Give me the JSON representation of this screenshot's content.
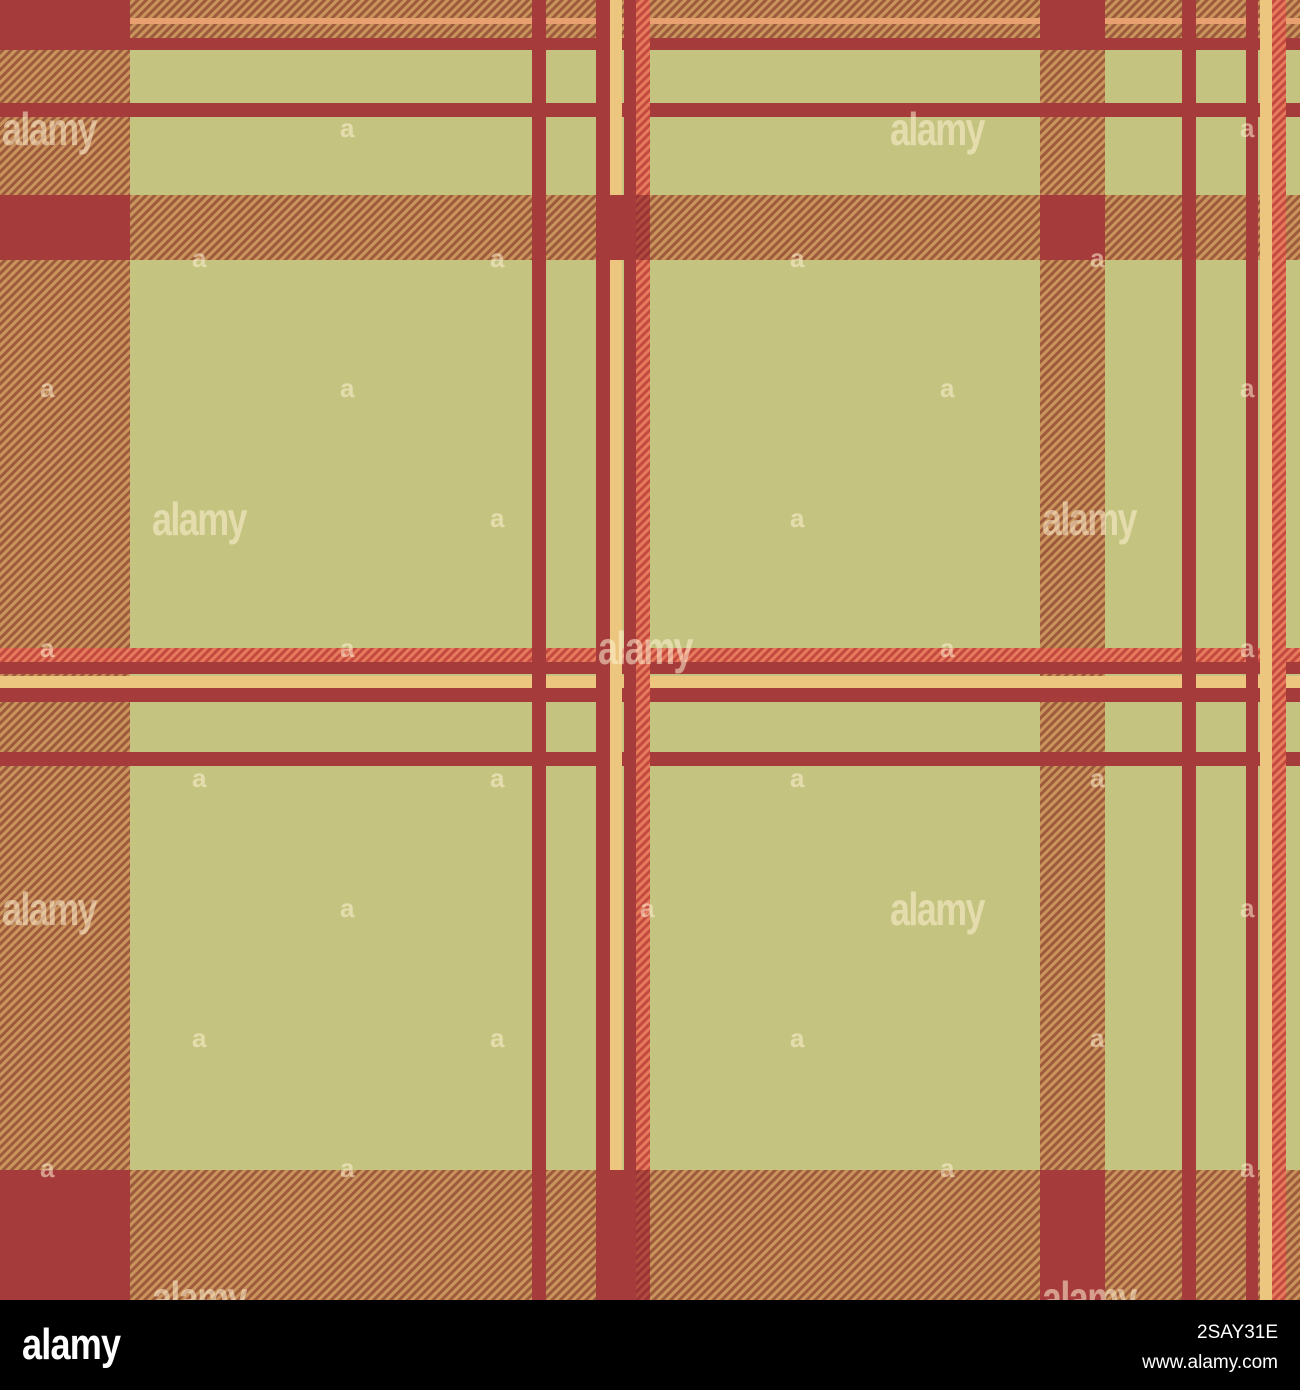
{
  "watermark": {
    "brand": "alamy",
    "mark": "a"
  },
  "footer": {
    "logo": "alamy",
    "image_id": "2SAY31E",
    "url": "www.alamy.com"
  },
  "colors": {
    "base": "#c4c480",
    "rust": "#a53b3b",
    "brown_twill": "#b07850",
    "coral": "#e2604f",
    "cream": "#ecc57f"
  }
}
